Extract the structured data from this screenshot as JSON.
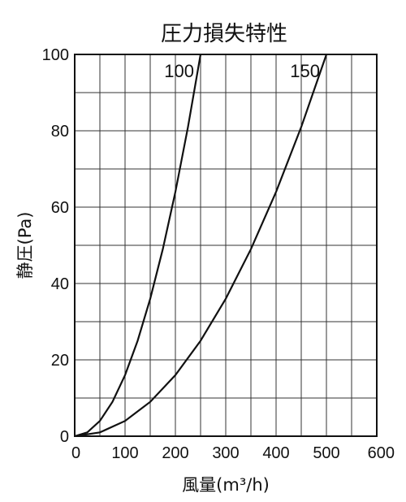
{
  "chart_data": {
    "type": "line",
    "title": "圧力損失特性",
    "xlabel": "風量(m³/h)",
    "ylabel": "静圧(Pa)",
    "xlim": [
      0,
      600
    ],
    "ylim": [
      0,
      100
    ],
    "x_ticks": [
      0,
      100,
      200,
      300,
      400,
      500,
      600
    ],
    "y_ticks": [
      0,
      20,
      40,
      60,
      80,
      100
    ],
    "x_tick_labels": [
      "0",
      "100",
      "200",
      "300",
      "400",
      "500",
      "600"
    ],
    "y_tick_labels": [
      "0",
      "20",
      "40",
      "60",
      "80",
      "100"
    ],
    "grid": true,
    "series": [
      {
        "name": "100",
        "x": [
          0,
          25,
          50,
          75,
          100,
          125,
          150,
          175,
          200,
          225,
          250
        ],
        "y": [
          0,
          1,
          4,
          9,
          16,
          25,
          36,
          49,
          64,
          81,
          100
        ]
      },
      {
        "name": "150",
        "x": [
          0,
          50,
          100,
          150,
          200,
          250,
          300,
          350,
          400,
          450,
          500
        ],
        "y": [
          0,
          1,
          4,
          9,
          16,
          25,
          36,
          49,
          64,
          81,
          100
        ]
      }
    ]
  }
}
